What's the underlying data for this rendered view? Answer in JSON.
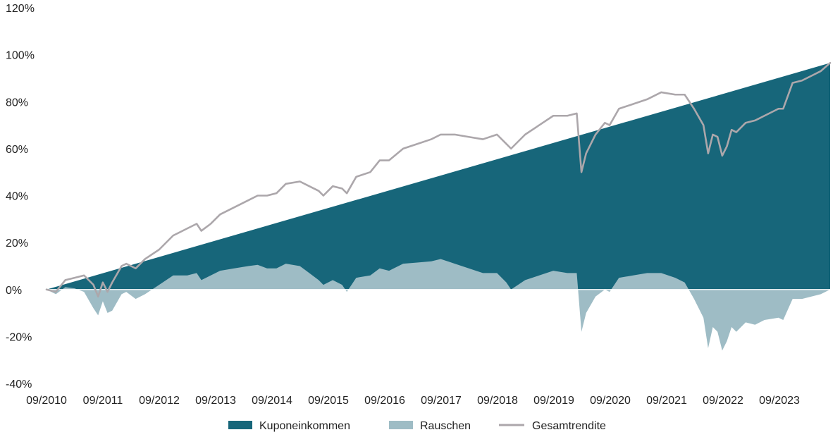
{
  "chart_data": {
    "type": "area",
    "title": "",
    "xlabel": "",
    "ylabel": "",
    "ylim": [
      -40,
      120
    ],
    "y_ticks": [
      -40,
      -20,
      0,
      20,
      40,
      60,
      80,
      100,
      120
    ],
    "y_tick_labels": [
      "-40%",
      "-20%",
      "0%",
      "20%",
      "40%",
      "60%",
      "80%",
      "100%",
      "120%"
    ],
    "x_tick_labels": [
      "09/2010",
      "09/2011",
      "09/2012",
      "09/2013",
      "09/2014",
      "09/2015",
      "09/2016",
      "09/2017",
      "09/2018",
      "09/2019",
      "09/2020",
      "09/2021",
      "09/2022",
      "09/2023"
    ],
    "x_start": "2010-09",
    "x_end": "2024-08",
    "grid": false,
    "legend_position": "bottom",
    "colors": {
      "Kuponeinkommen": "#17667a",
      "Rauschen": "#9ebcc5",
      "Gesamtrendite": "#aca7ab"
    },
    "series": [
      {
        "name": "Kuponeinkommen",
        "type": "area",
        "points": [
          [
            "2010-09",
            0
          ],
          [
            "2024-08",
            96.5
          ]
        ]
      },
      {
        "name": "Rauschen",
        "type": "area",
        "points": [
          [
            "2010-09",
            0
          ],
          [
            "2010-11",
            -2
          ],
          [
            "2011-01",
            1
          ],
          [
            "2011-03",
            0.5
          ],
          [
            "2011-05",
            -1
          ],
          [
            "2011-07",
            -8
          ],
          [
            "2011-08",
            -11
          ],
          [
            "2011-09",
            -5
          ],
          [
            "2011-10",
            -10
          ],
          [
            "2011-11",
            -9
          ],
          [
            "2012-01",
            -2
          ],
          [
            "2012-02",
            -1
          ],
          [
            "2012-04",
            -4
          ],
          [
            "2012-06",
            -2
          ],
          [
            "2012-09",
            2
          ],
          [
            "2012-12",
            6
          ],
          [
            "2013-03",
            6
          ],
          [
            "2013-05",
            7
          ],
          [
            "2013-06",
            4
          ],
          [
            "2013-08",
            6
          ],
          [
            "2013-10",
            8
          ],
          [
            "2014-01",
            9
          ],
          [
            "2014-04",
            10
          ],
          [
            "2014-06",
            10.5
          ],
          [
            "2014-08",
            9
          ],
          [
            "2014-10",
            9
          ],
          [
            "2014-12",
            11
          ],
          [
            "2015-03",
            10
          ],
          [
            "2015-05",
            7
          ],
          [
            "2015-07",
            4
          ],
          [
            "2015-08",
            2
          ],
          [
            "2015-10",
            4
          ],
          [
            "2015-12",
            2
          ],
          [
            "2016-01",
            -1
          ],
          [
            "2016-03",
            5
          ],
          [
            "2016-06",
            6
          ],
          [
            "2016-08",
            9
          ],
          [
            "2016-10",
            8
          ],
          [
            "2017-01",
            11
          ],
          [
            "2017-04",
            11.5
          ],
          [
            "2017-07",
            12
          ],
          [
            "2017-09",
            13
          ],
          [
            "2017-12",
            11
          ],
          [
            "2018-03",
            9
          ],
          [
            "2018-06",
            7
          ],
          [
            "2018-09",
            7
          ],
          [
            "2018-11",
            3
          ],
          [
            "2018-12",
            0
          ],
          [
            "2019-03",
            4
          ],
          [
            "2019-06",
            6
          ],
          [
            "2019-09",
            8
          ],
          [
            "2019-12",
            7
          ],
          [
            "2020-02",
            7
          ],
          [
            "2020-03",
            -18
          ],
          [
            "2020-04",
            -10
          ],
          [
            "2020-06",
            -3
          ],
          [
            "2020-08",
            0
          ],
          [
            "2020-09",
            -1
          ],
          [
            "2020-11",
            5
          ],
          [
            "2021-02",
            6
          ],
          [
            "2021-05",
            7
          ],
          [
            "2021-08",
            7
          ],
          [
            "2021-11",
            5
          ],
          [
            "2022-01",
            3
          ],
          [
            "2022-03",
            -4
          ],
          [
            "2022-05",
            -12
          ],
          [
            "2022-06",
            -25
          ],
          [
            "2022-07",
            -16
          ],
          [
            "2022-08",
            -18
          ],
          [
            "2022-09",
            -26
          ],
          [
            "2022-10",
            -22
          ],
          [
            "2022-11",
            -16
          ],
          [
            "2022-12",
            -18
          ],
          [
            "2023-02",
            -14
          ],
          [
            "2023-04",
            -15
          ],
          [
            "2023-06",
            -13
          ],
          [
            "2023-09",
            -12
          ],
          [
            "2023-10",
            -13
          ],
          [
            "2023-12",
            -4
          ],
          [
            "2024-02",
            -4
          ],
          [
            "2024-04",
            -3
          ],
          [
            "2024-06",
            -2
          ],
          [
            "2024-08",
            0
          ]
        ]
      },
      {
        "name": "Gesamtrendite",
        "type": "line",
        "points": [
          [
            "2010-09",
            0
          ],
          [
            "2010-11",
            -1
          ],
          [
            "2011-01",
            4
          ],
          [
            "2011-03",
            5
          ],
          [
            "2011-05",
            6
          ],
          [
            "2011-07",
            2
          ],
          [
            "2011-08",
            -3
          ],
          [
            "2011-09",
            3
          ],
          [
            "2011-10",
            -1
          ],
          [
            "2011-11",
            3
          ],
          [
            "2012-01",
            10
          ],
          [
            "2012-02",
            11
          ],
          [
            "2012-04",
            9
          ],
          [
            "2012-06",
            13
          ],
          [
            "2012-09",
            17
          ],
          [
            "2012-12",
            23
          ],
          [
            "2013-03",
            26
          ],
          [
            "2013-05",
            28
          ],
          [
            "2013-06",
            25
          ],
          [
            "2013-08",
            28
          ],
          [
            "2013-10",
            32
          ],
          [
            "2014-01",
            35
          ],
          [
            "2014-04",
            38
          ],
          [
            "2014-06",
            40
          ],
          [
            "2014-08",
            40
          ],
          [
            "2014-10",
            41
          ],
          [
            "2014-12",
            45
          ],
          [
            "2015-03",
            46
          ],
          [
            "2015-05",
            44
          ],
          [
            "2015-07",
            42
          ],
          [
            "2015-08",
            40
          ],
          [
            "2015-10",
            44
          ],
          [
            "2015-12",
            43
          ],
          [
            "2016-01",
            41
          ],
          [
            "2016-03",
            48
          ],
          [
            "2016-06",
            50
          ],
          [
            "2016-08",
            55
          ],
          [
            "2016-10",
            55
          ],
          [
            "2017-01",
            60
          ],
          [
            "2017-04",
            62
          ],
          [
            "2017-07",
            64
          ],
          [
            "2017-09",
            66
          ],
          [
            "2017-12",
            66
          ],
          [
            "2018-03",
            65
          ],
          [
            "2018-06",
            64
          ],
          [
            "2018-09",
            66
          ],
          [
            "2018-11",
            62
          ],
          [
            "2018-12",
            60
          ],
          [
            "2019-03",
            66
          ],
          [
            "2019-06",
            70
          ],
          [
            "2019-09",
            74
          ],
          [
            "2019-12",
            74
          ],
          [
            "2020-02",
            75
          ],
          [
            "2020-03",
            50
          ],
          [
            "2020-04",
            58
          ],
          [
            "2020-06",
            66
          ],
          [
            "2020-08",
            71
          ],
          [
            "2020-09",
            70
          ],
          [
            "2020-11",
            77
          ],
          [
            "2021-02",
            79
          ],
          [
            "2021-05",
            81
          ],
          [
            "2021-08",
            84
          ],
          [
            "2021-11",
            83
          ],
          [
            "2022-01",
            83
          ],
          [
            "2022-03",
            77
          ],
          [
            "2022-05",
            70
          ],
          [
            "2022-06",
            58
          ],
          [
            "2022-07",
            66
          ],
          [
            "2022-08",
            65
          ],
          [
            "2022-09",
            57
          ],
          [
            "2022-10",
            61
          ],
          [
            "2022-11",
            68
          ],
          [
            "2022-12",
            67
          ],
          [
            "2023-02",
            71
          ],
          [
            "2023-04",
            72
          ],
          [
            "2023-06",
            74
          ],
          [
            "2023-09",
            77
          ],
          [
            "2023-10",
            77
          ],
          [
            "2023-12",
            88
          ],
          [
            "2024-02",
            89
          ],
          [
            "2024-04",
            91
          ],
          [
            "2024-06",
            93
          ],
          [
            "2024-08",
            96.5
          ]
        ]
      }
    ]
  },
  "legend": {
    "items": [
      {
        "label": "Kuponeinkommen",
        "symbol": "box",
        "color": "#17667a"
      },
      {
        "label": "Rauschen",
        "symbol": "box",
        "color": "#9ebcc5"
      },
      {
        "label": "Gesamtrendite",
        "symbol": "line",
        "color": "#aca7ab"
      }
    ]
  }
}
